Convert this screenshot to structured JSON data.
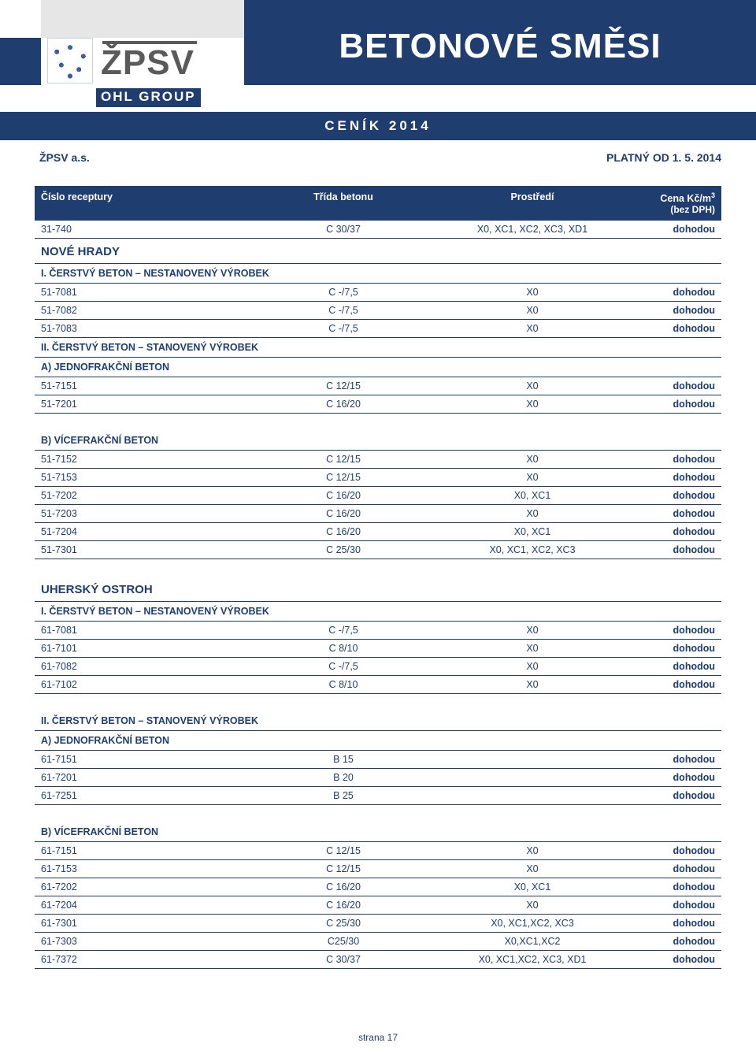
{
  "colors": {
    "brand_blue": "#1f3d6e",
    "gray_logo": "#5a5a5a",
    "light_gray": "#e6e6e6",
    "white": "#ffffff"
  },
  "header": {
    "logo_text": "ŽPSV",
    "ohl_text": "OHL GROUP",
    "main_title": "BETONOVÉ SMĚSI",
    "price_list_label": "CENÍK 2014"
  },
  "subbar": {
    "company": "ŽPSV a.s.",
    "valid_from": "PLATNÝ OD 1. 5. 2014"
  },
  "table": {
    "headers": {
      "cislo": "Číslo receptury",
      "trida": "Třída betonu",
      "prostredi": "Prostředí",
      "cena": "Cena Kč/m",
      "cena_unit_sup": "3",
      "cena_sub": "(bez DPH)"
    },
    "blocks": [
      {
        "type": "row",
        "cislo": "31-740",
        "trida": "C 30/37",
        "prost": "X0, XC1, XC2, XC3, XD1",
        "cena": "dohodou"
      },
      {
        "type": "section",
        "label": "NOVÉ HRADY"
      },
      {
        "type": "subhead",
        "label": "I.  ČERSTVÝ BETON – NESTANOVENÝ VÝROBEK"
      },
      {
        "type": "row",
        "cislo": "51-7081",
        "trida": "C -/7,5",
        "prost": "X0",
        "cena": "dohodou"
      },
      {
        "type": "row",
        "cislo": "51-7082",
        "trida": "C -/7,5",
        "prost": "X0",
        "cena": "dohodou"
      },
      {
        "type": "row",
        "cislo": "51-7083",
        "trida": "C -/7,5",
        "prost": "X0",
        "cena": "dohodou"
      },
      {
        "type": "subhead",
        "label": "II.  ČERSTVÝ BETON – STANOVENÝ VÝROBEK"
      },
      {
        "type": "subsub",
        "label": "A) JEDNOFRAKČNÍ BETON"
      },
      {
        "type": "row",
        "cislo": "51-7151",
        "trida": "C 12/15",
        "prost": "X0",
        "cena": "dohodou"
      },
      {
        "type": "row",
        "cislo": "51-7201",
        "trida": "C 16/20",
        "prost": "X0",
        "cena": "dohodou"
      },
      {
        "type": "gap"
      },
      {
        "type": "subsub",
        "label": "B) VÍCEFRAKČNÍ BETON"
      },
      {
        "type": "row",
        "cislo": "51-7152",
        "trida": "C 12/15",
        "prost": "X0",
        "cena": "dohodou"
      },
      {
        "type": "row",
        "cislo": "51-7153",
        "trida": "C 12/15",
        "prost": "X0",
        "cena": "dohodou"
      },
      {
        "type": "row",
        "cislo": "51-7202",
        "trida": "C 16/20",
        "prost": "X0, XC1",
        "cena": "dohodou"
      },
      {
        "type": "row",
        "cislo": "51-7203",
        "trida": "C 16/20",
        "prost": "X0",
        "cena": "dohodou"
      },
      {
        "type": "row",
        "cislo": "51-7204",
        "trida": "C 16/20",
        "prost": "X0, XC1",
        "cena": "dohodou"
      },
      {
        "type": "row",
        "cislo": "51-7301",
        "trida": "C 25/30",
        "prost": "X0, XC1, XC2, XC3",
        "cena": "dohodou"
      },
      {
        "type": "gap"
      },
      {
        "type": "section",
        "label": "UHERSKÝ OSTROH"
      },
      {
        "type": "subhead",
        "label": "I.  ČERSTVÝ BETON – NESTANOVENÝ VÝROBEK"
      },
      {
        "type": "row",
        "cislo": "61-7081",
        "trida": "C -/7,5",
        "prost": "X0",
        "cena": "dohodou"
      },
      {
        "type": "row",
        "cislo": "61-7101",
        "trida": "C 8/10",
        "prost": "X0",
        "cena": "dohodou"
      },
      {
        "type": "row",
        "cislo": "61-7082",
        "trida": "C -/7,5",
        "prost": "X0",
        "cena": "dohodou"
      },
      {
        "type": "row",
        "cislo": "61-7102",
        "trida": "C 8/10",
        "prost": "X0",
        "cena": "dohodou"
      },
      {
        "type": "gap"
      },
      {
        "type": "subhead",
        "label": "II.  ČERSTVÝ BETON – STANOVENÝ VÝROBEK"
      },
      {
        "type": "subsub",
        "label": "A) JEDNOFRAKČNÍ BETON"
      },
      {
        "type": "row",
        "cislo": "61-7151",
        "trida": "B 15",
        "prost": "",
        "cena": "dohodou"
      },
      {
        "type": "row",
        "cislo": "61-7201",
        "trida": "B 20",
        "prost": "",
        "cena": "dohodou"
      },
      {
        "type": "row",
        "cislo": "61-7251",
        "trida": "B 25",
        "prost": "",
        "cena": "dohodou"
      },
      {
        "type": "gap"
      },
      {
        "type": "subsub",
        "label": "B) VÍCEFRAKČNÍ BETON"
      },
      {
        "type": "row",
        "cislo": "61-7151",
        "trida": "C 12/15",
        "prost": "X0",
        "cena": "dohodou"
      },
      {
        "type": "row",
        "cislo": "61-7153",
        "trida": "C 12/15",
        "prost": "X0",
        "cena": "dohodou"
      },
      {
        "type": "row",
        "cislo": "61-7202",
        "trida": "C 16/20",
        "prost": "X0, XC1",
        "cena": "dohodou"
      },
      {
        "type": "row",
        "cislo": "61-7204",
        "trida": "C 16/20",
        "prost": "X0",
        "cena": "dohodou"
      },
      {
        "type": "row",
        "cislo": "61-7301",
        "trida": "C 25/30",
        "prost": "X0, XC1,XC2, XC3",
        "cena": "dohodou"
      },
      {
        "type": "row",
        "cislo": "61-7303",
        "trida": "C25/30",
        "prost": "X0,XC1,XC2",
        "cena": "dohodou"
      },
      {
        "type": "row",
        "cislo": "61-7372",
        "trida": "C 30/37",
        "prost": "X0, XC1,XC2, XC3, XD1",
        "cena": "dohodou"
      }
    ]
  },
  "footer": {
    "page_label": "strana 17"
  }
}
